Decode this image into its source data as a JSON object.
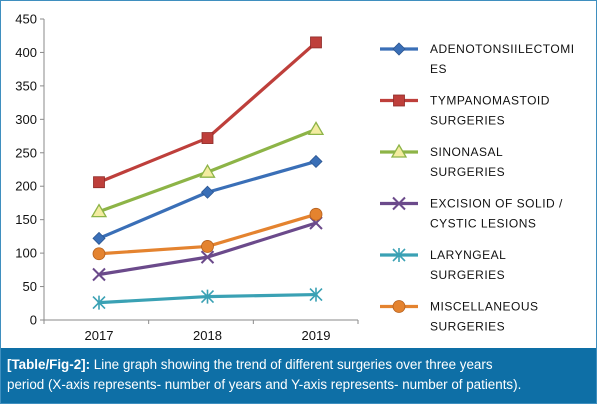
{
  "chart_data": {
    "type": "line",
    "categories": [
      "2017",
      "2018",
      "2019"
    ],
    "ylim": [
      0,
      450
    ],
    "yticks": [
      0,
      50,
      100,
      150,
      200,
      250,
      300,
      350,
      400,
      450
    ],
    "grid": false,
    "legend_position": "right",
    "series": [
      {
        "name": "ADENOTONSILLECTOMIES",
        "legend_lines": [
          "ADENOTONSIILECTOMI",
          "ES"
        ],
        "values": [
          122,
          191,
          237
        ],
        "color": "#3a6fb7",
        "marker": "diamond"
      },
      {
        "name": "TYMPANOMASTOID SURGERIES",
        "legend_lines": [
          "TYMPANOMASTOID",
          "SURGERIES"
        ],
        "values": [
          206,
          272,
          415
        ],
        "color": "#be3f3b",
        "marker": "square"
      },
      {
        "name": "SINONASAL SURGERIES",
        "legend_lines": [
          "SINONASAL",
          "SURGERIES"
        ],
        "values": [
          162,
          221,
          285
        ],
        "color": "#8db447",
        "marker": "triangle"
      },
      {
        "name": "EXCISION OF SOLID / CYSTIC LESIONS",
        "legend_lines": [
          "EXCISION OF SOLID /",
          "CYSTIC LESIONS"
        ],
        "values": [
          68,
          94,
          145
        ],
        "color": "#6b4a8b",
        "marker": "x"
      },
      {
        "name": "LARYNGEAL SURGERIES",
        "legend_lines": [
          "LARYNGEAL",
          "SURGERIES"
        ],
        "values": [
          26,
          35,
          38
        ],
        "color": "#3aa1b4",
        "marker": "star"
      },
      {
        "name": "MISCELLANEOUS SURGERIES",
        "legend_lines": [
          "MISCELLANEOUS",
          "SURGERIES"
        ],
        "values": [
          99,
          110,
          158
        ],
        "color": "#e4832f",
        "marker": "circle"
      }
    ]
  },
  "caption": {
    "label": "[Table/Fig-2]:",
    "line1": " Line graph showing the trend of different surgeries over three years",
    "line2": "period (X-axis represents- number of years and Y-axis represents- number of patients)."
  }
}
